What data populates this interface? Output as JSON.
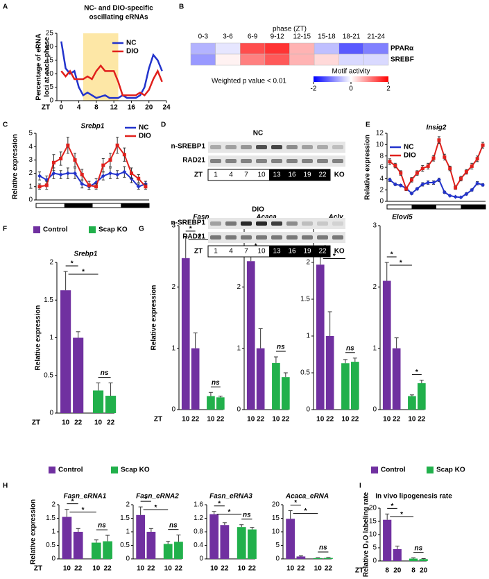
{
  "chart_data": [
    {
      "type": "line",
      "panel": "A",
      "title": [
        "NC- and DIO-specific",
        "oscillating eRNAs"
      ],
      "ylabel": [
        "Percentage of eRNA",
        "loci at each phase"
      ],
      "xlabel": "ZT",
      "x": [
        0,
        1,
        2,
        3,
        4,
        5,
        6,
        7,
        8,
        9,
        10,
        11,
        12,
        13,
        14,
        15,
        16,
        17,
        18,
        19,
        20,
        21,
        22,
        23
      ],
      "xlim": [
        -1,
        24
      ],
      "xticks": [
        0,
        4,
        8,
        12,
        16,
        20,
        24
      ],
      "ylim": [
        0,
        25
      ],
      "yticks": [
        0,
        5,
        10,
        15,
        20,
        25
      ],
      "shaded_range": [
        5,
        13
      ],
      "shaded_color": "#fde7a6",
      "series": [
        {
          "name": "NC",
          "color": "#2233cc",
          "values": [
            22,
            12,
            10,
            11,
            5,
            2,
            3,
            2,
            1,
            1.5,
            2,
            1,
            1,
            1,
            2,
            1,
            1,
            1,
            2,
            5,
            12,
            17,
            15,
            11
          ]
        },
        {
          "name": "DIO",
          "color": "#e0201c",
          "values": [
            11,
            9,
            11,
            8,
            8,
            8,
            9,
            8,
            11,
            13,
            11,
            11,
            11,
            7,
            2,
            2,
            2,
            2,
            3,
            2,
            4,
            8,
            11,
            7
          ]
        }
      ]
    },
    {
      "type": "heatmap",
      "panel": "B",
      "xlabel": "phase (ZT)",
      "categories": [
        "0-3",
        "3-6",
        "6-9",
        "9-12",
        "12-15",
        "15-18",
        "18-21",
        "21-24"
      ],
      "rows": [
        "PPARα",
        "SREBF"
      ],
      "values": [
        [
          -0.6,
          -0.2,
          1.4,
          1.6,
          0.6,
          -0.5,
          -1.3,
          -1.0
        ],
        [
          -0.8,
          0.1,
          1.0,
          1.3,
          0.6,
          0.3,
          -0.3,
          -0.3
        ]
      ],
      "colorbar_label": "Motif activity",
      "clim": [
        -2,
        2
      ],
      "cticks": [
        -2,
        0,
        2
      ],
      "colors": [
        "#0000ff",
        "#ffffff",
        "#ff0000"
      ],
      "note": "Weighted p value < 0.01"
    },
    {
      "type": "line",
      "panel": "C",
      "title": "Srebp1",
      "ylabel": "Relative expression",
      "ylim": [
        0,
        5
      ],
      "yticks": [
        0,
        1,
        2,
        3,
        4,
        5
      ],
      "series": [
        {
          "name": "NC",
          "color": "#2233cc",
          "marker": "diamond",
          "values": [
            1.8,
            1.5,
            2.0,
            1.9,
            2.0,
            2.0,
            1.2,
            1.0,
            1.3,
            1.8,
            2.0,
            1.9,
            2.1,
            1.6,
            1.0,
            1.2
          ],
          "errors": [
            0.3,
            0.3,
            0.4,
            0.3,
            0.4,
            0.4,
            0.3,
            0.2,
            0.3,
            0.3,
            0.4,
            0.3,
            0.4,
            0.3,
            0.2,
            0.2
          ]
        },
        {
          "name": "DIO",
          "color": "#e0201c",
          "marker": "square",
          "values": [
            1.0,
            1.1,
            2.8,
            3.1,
            4.1,
            3.0,
            1.9,
            1.1,
            1.0,
            2.6,
            3.0,
            4.1,
            3.4,
            2.0,
            1.6,
            1.0
          ],
          "errors": [
            0.2,
            0.3,
            0.6,
            0.5,
            0.6,
            0.5,
            0.4,
            0.3,
            0.2,
            0.5,
            0.5,
            0.6,
            0.5,
            0.4,
            0.3,
            0.2
          ]
        }
      ]
    },
    {
      "type": "line",
      "panel": "E",
      "title": "Insig2",
      "ylabel": "Relative expression",
      "ylim": [
        0,
        12
      ],
      "yticks": [
        0,
        2,
        4,
        6,
        8,
        10,
        12
      ],
      "series": [
        {
          "name": "NC",
          "color": "#2233cc",
          "marker": "diamond",
          "values": [
            3.8,
            3.0,
            2.8,
            2.3,
            1.4,
            2.2,
            3.0,
            3.3,
            3.3,
            3.8,
            1.6,
            1.0,
            0.8,
            0.7,
            1.3,
            2.0,
            3.2,
            2.9
          ],
          "errors": [
            0.3,
            0.2,
            0.2,
            0.2,
            0.2,
            0.2,
            0.3,
            0.3,
            0.3,
            0.3,
            0.2,
            0.1,
            0.1,
            0.1,
            0.2,
            0.2,
            0.3,
            0.2
          ]
        },
        {
          "name": "DIO",
          "color": "#e0201c",
          "marker": "square",
          "values": [
            7.0,
            6.3,
            5.0,
            2.2,
            3.8,
            5.0,
            5.8,
            6.2,
            7.6,
            10.8,
            7.8,
            5.8,
            2.4,
            4.0,
            5.2,
            6.2,
            7.5,
            9.9
          ],
          "errors": [
            0.5,
            0.4,
            0.4,
            0.3,
            0.4,
            0.4,
            0.5,
            0.5,
            0.5,
            0.6,
            0.5,
            0.4,
            0.3,
            0.4,
            0.4,
            0.5,
            0.5,
            0.5
          ]
        }
      ]
    },
    {
      "type": "bar-group",
      "panel": "F",
      "xlabel": "ZT",
      "ylabel": "Relative expression",
      "legend": [
        {
          "name": "Control",
          "color": "#7030a0"
        },
        {
          "name": "Scap KO",
          "color": "#21b04b"
        }
      ],
      "bar_colors": [
        "#7030a0",
        "#7030a0",
        "#21b04b",
        "#21b04b"
      ],
      "charts": [
        {
          "title": "Srebp1",
          "categories": [
            "10",
            "22",
            "10",
            "22"
          ],
          "values": [
            1.63,
            1.0,
            0.3,
            0.23
          ],
          "errors": [
            0.25,
            0.08,
            0.1,
            0.17
          ],
          "ylim": [
            0,
            2
          ],
          "yticks": [
            0,
            0.5,
            1,
            1.5,
            2
          ],
          "annotations": [
            "*",
            "*",
            "ns"
          ]
        }
      ]
    },
    {
      "type": "bar-group",
      "panel": "G",
      "xlabel": "ZT",
      "ylabel": "Relative expression",
      "bar_colors": [
        "#7030a0",
        "#7030a0",
        "#21b04b",
        "#21b04b"
      ],
      "charts": [
        {
          "title": "Fasn",
          "categories": [
            "10",
            "22",
            "10",
            "22"
          ],
          "values": [
            2.47,
            1.0,
            0.22,
            0.2
          ],
          "errors": [
            0.35,
            0.25,
            0.06,
            0.02
          ],
          "ylim": [
            0,
            3
          ],
          "yticks": [
            0,
            1,
            2,
            3
          ],
          "annotations": [
            "*",
            "*",
            "ns"
          ]
        },
        {
          "title": "Acaca",
          "categories": [
            "10",
            "22",
            "10",
            "22"
          ],
          "values": [
            2.42,
            1.0,
            0.76,
            0.53
          ],
          "errors": [
            0.12,
            0.32,
            0.1,
            0.07
          ],
          "ylim": [
            0,
            3
          ],
          "yticks": [
            0,
            1,
            2,
            3
          ],
          "annotations": [
            "*",
            "*",
            "ns"
          ]
        },
        {
          "title": "Acly",
          "categories": [
            "10",
            "22",
            "10",
            "22"
          ],
          "values": [
            1.97,
            1.0,
            0.63,
            0.65
          ],
          "errors": [
            0.12,
            0.33,
            0.05,
            0.05
          ],
          "ylim": [
            0,
            2.5
          ],
          "yticks": [
            0,
            0.5,
            1,
            1.5,
            2,
            2.5
          ],
          "annotations": [
            "*",
            "*",
            "ns"
          ]
        },
        {
          "title": "Elovl5",
          "categories": [
            "10",
            "22",
            "10",
            "22"
          ],
          "values": [
            2.1,
            1.0,
            0.22,
            0.43
          ],
          "errors": [
            0.3,
            0.17,
            0.02,
            0.05
          ],
          "ylim": [
            0,
            3
          ],
          "yticks": [
            0,
            1,
            2,
            3
          ],
          "annotations": [
            "*",
            "*",
            "*"
          ]
        }
      ]
    },
    {
      "type": "bar-group",
      "panel": "H",
      "xlabel": "ZT",
      "ylabel": "Relative expression",
      "legend": [
        {
          "name": "Control",
          "color": "#7030a0"
        },
        {
          "name": "Scap KO",
          "color": "#21b04b"
        }
      ],
      "bar_colors": [
        "#7030a0",
        "#7030a0",
        "#21b04b",
        "#21b04b"
      ],
      "charts": [
        {
          "title": "Fasn_eRNA1",
          "categories": [
            "10",
            "22",
            "10",
            "22"
          ],
          "values": [
            1.55,
            1.0,
            0.6,
            0.65
          ],
          "errors": [
            0.28,
            0.12,
            0.1,
            0.22
          ],
          "ylim": [
            0,
            2
          ],
          "yticks": [
            0,
            0.5,
            1,
            1.5,
            2
          ],
          "annotations": [
            "*",
            "*",
            "ns"
          ]
        },
        {
          "title": "Fasn_eRNA2",
          "categories": [
            "10",
            "22",
            "10",
            "22"
          ],
          "values": [
            1.62,
            1.0,
            0.55,
            0.63
          ],
          "errors": [
            0.3,
            0.12,
            0.1,
            0.25
          ],
          "ylim": [
            0,
            2
          ],
          "yticks": [
            0,
            0.5,
            1,
            1.5,
            2
          ],
          "annotations": [
            "*",
            "*",
            "ns"
          ]
        },
        {
          "title": "Fasn_eRNA3",
          "categories": [
            "10",
            "22",
            "10",
            "22"
          ],
          "values": [
            1.32,
            1.0,
            0.94,
            0.87
          ],
          "errors": [
            0.08,
            0.07,
            0.07,
            0.06
          ],
          "ylim": [
            0,
            1.6
          ],
          "yticks": [
            0,
            0.4,
            0.8,
            1.2,
            1.6
          ],
          "annotations": [
            "*",
            "*",
            "ns"
          ]
        },
        {
          "title": "Acaca_eRNA",
          "categories": [
            "10",
            "22",
            "10",
            "22"
          ],
          "values": [
            14.8,
            0.9,
            0.3,
            0.35
          ],
          "errors": [
            3.0,
            0.2,
            0.1,
            0.15
          ],
          "ylim": [
            0,
            20
          ],
          "yticks": [
            0,
            5,
            10,
            15,
            20
          ],
          "annotations": [
            "*",
            "*",
            "ns"
          ]
        }
      ]
    },
    {
      "type": "bar-group",
      "panel": "I",
      "xlabel": "ZT",
      "ylabel": "Relative D₂O labeling rate",
      "title": "In vivo lipogenesis rate",
      "legend": [
        {
          "name": "Control",
          "color": "#7030a0"
        },
        {
          "name": "Scap KO",
          "color": "#21b04b"
        }
      ],
      "bar_colors": [
        "#7030a0",
        "#7030a0",
        "#21b04b",
        "#21b04b"
      ],
      "charts": [
        {
          "categories": [
            "8",
            "20",
            "8",
            "20"
          ],
          "values": [
            15.6,
            4.5,
            0.9,
            0.7
          ],
          "errors": [
            2.2,
            1.1,
            0.25,
            0.2
          ],
          "ylim": [
            0,
            20
          ],
          "yticks": [
            0,
            5,
            10,
            15,
            20
          ],
          "annotations": [
            "*",
            "*",
            "ns"
          ]
        }
      ]
    }
  ],
  "blot": {
    "panel": "D",
    "groups": [
      {
        "title": "NC",
        "rows": [
          "n-SREBP1",
          "RAD21"
        ],
        "axis": "ZT",
        "lanes": [
          "1",
          "4",
          "7",
          "10",
          "13",
          "16",
          "19",
          "22"
        ],
        "extra_lane": "KO"
      },
      {
        "title": "DIO",
        "rows": [
          "n-SREBP1",
          "RAD21"
        ],
        "axis": "ZT",
        "lanes": [
          "1",
          "4",
          "7",
          "10",
          "13",
          "16",
          "19",
          "22"
        ],
        "extra_lane": "KO"
      }
    ]
  }
}
